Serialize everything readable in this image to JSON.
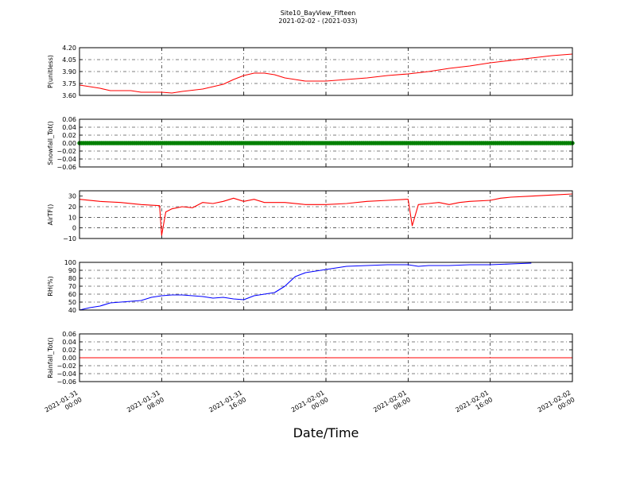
{
  "figure": {
    "title_line1": "Site10_BayView_Fifteen",
    "title_line2": "2021-02-02 - (2021-033)",
    "xlabel": "Date/Time",
    "x_ticks": [
      {
        "t": 0,
        "line1": "2021-01-31",
        "line2": "00:00"
      },
      {
        "t": 8,
        "line1": "2021-01-31",
        "line2": "08:00"
      },
      {
        "t": 16,
        "line1": "2021-01-31",
        "line2": "16:00"
      },
      {
        "t": 24,
        "line1": "2021-02-01",
        "line2": "00:00"
      },
      {
        "t": 32,
        "line1": "2021-02-01",
        "line2": "08:00"
      },
      {
        "t": 40,
        "line1": "2021-02-01",
        "line2": "16:00"
      },
      {
        "t": 48,
        "line1": "2021-02-02",
        "line2": "00:00"
      }
    ],
    "x_range": [
      "2021-01-31 00:00",
      "2021-02-02 00:00"
    ]
  },
  "chart_data": [
    {
      "type": "line",
      "ylabel": "P(unitless)",
      "ylim": [
        3.6,
        4.2
      ],
      "yticks": [
        "3.60",
        "3.75",
        "3.90",
        "4.05",
        "4.20"
      ],
      "ytick_values": [
        3.6,
        3.75,
        3.9,
        4.05,
        4.2
      ],
      "grid": true,
      "series": [
        {
          "color": "#ff0000",
          "x": [
            "2021-01-31 00:00",
            "2021-01-31 01:00",
            "2021-01-31 02:00",
            "2021-01-31 03:00",
            "2021-01-31 05:00",
            "2021-01-31 06:00",
            "2021-01-31 08:00",
            "2021-01-31 09:00",
            "2021-01-31 10:00",
            "2021-01-31 12:00",
            "2021-01-31 13:00",
            "2021-01-31 14:00",
            "2021-01-31 15:00",
            "2021-01-31 16:00",
            "2021-01-31 17:00",
            "2021-01-31 18:00",
            "2021-01-31 19:00",
            "2021-01-31 20:00",
            "2021-01-31 21:00",
            "2021-01-31 22:00",
            "2021-02-01 00:00",
            "2021-02-01 02:00",
            "2021-02-01 04:00",
            "2021-02-01 06:00",
            "2021-02-01 08:00",
            "2021-02-01 10:00",
            "2021-02-01 12:00",
            "2021-02-01 14:00",
            "2021-02-01 16:00",
            "2021-02-01 18:00",
            "2021-02-01 20:00",
            "2021-02-01 22:00",
            "2021-02-02 00:00"
          ],
          "values": [
            3.73,
            3.71,
            3.69,
            3.66,
            3.66,
            3.64,
            3.64,
            3.63,
            3.65,
            3.68,
            3.71,
            3.74,
            3.8,
            3.85,
            3.88,
            3.88,
            3.86,
            3.82,
            3.8,
            3.78,
            3.78,
            3.8,
            3.82,
            3.85,
            3.87,
            3.9,
            3.94,
            3.97,
            4.01,
            4.04,
            4.07,
            4.1,
            4.12
          ]
        }
      ]
    },
    {
      "type": "scatter",
      "ylabel": "Snowfall_Tot()",
      "ylim": [
        -0.06,
        0.06
      ],
      "yticks": [
        "−0.06",
        "−0.04",
        "−0.02",
        "0.00",
        "0.02",
        "0.04",
        "0.06"
      ],
      "ytick_values": [
        -0.06,
        -0.04,
        -0.02,
        0,
        0.02,
        0.04,
        0.06
      ],
      "grid": true,
      "series": [
        {
          "color": "#008000",
          "x_start": "2021-01-31 00:00",
          "x_end": "2021-02-02 00:00",
          "constant_value": 0.0
        }
      ]
    },
    {
      "type": "line",
      "ylabel": "AirTF()",
      "ylim": [
        -10,
        35
      ],
      "yticks": [
        "−10",
        "0",
        "10",
        "20",
        "30"
      ],
      "ytick_values": [
        -10,
        0,
        10,
        20,
        30
      ],
      "grid": true,
      "series": [
        {
          "color": "#ff0000",
          "x": [
            "2021-01-31 00:00",
            "2021-01-31 02:00",
            "2021-01-31 04:00",
            "2021-01-31 06:00",
            "2021-01-31 07:48",
            "2021-01-31 08:00",
            "2021-01-31 08:24",
            "2021-01-31 09:00",
            "2021-01-31 10:00",
            "2021-01-31 11:00",
            "2021-01-31 12:00",
            "2021-01-31 13:00",
            "2021-01-31 14:00",
            "2021-01-31 15:00",
            "2021-01-31 16:00",
            "2021-01-31 17:00",
            "2021-01-31 18:00",
            "2021-01-31 20:00",
            "2021-01-31 22:00",
            "2021-02-01 00:00",
            "2021-02-01 02:00",
            "2021-02-01 04:00",
            "2021-02-01 06:00",
            "2021-02-01 07:48",
            "2021-02-01 08:00",
            "2021-02-01 08:24",
            "2021-02-01 09:00",
            "2021-02-01 10:00",
            "2021-02-01 11:00",
            "2021-02-01 12:00",
            "2021-02-01 13:00",
            "2021-02-01 14:00",
            "2021-02-01 16:00",
            "2021-02-01 17:00",
            "2021-02-01 18:00",
            "2021-02-01 20:00",
            "2021-02-01 22:00",
            "2021-02-02 00:00"
          ],
          "values": [
            27,
            25,
            24,
            22,
            21,
            -7,
            15,
            18,
            20,
            19,
            24,
            23,
            25,
            28,
            25,
            27,
            24,
            24,
            22,
            22,
            23,
            25,
            26,
            27,
            27,
            2,
            22,
            23,
            24,
            22,
            24,
            25,
            26,
            28,
            29,
            30,
            31,
            32
          ]
        }
      ]
    },
    {
      "type": "line",
      "ylabel": "RH(%)",
      "ylim": [
        40,
        100
      ],
      "yticks": [
        "40",
        "50",
        "60",
        "70",
        "80",
        "90",
        "100"
      ],
      "ytick_values": [
        40,
        50,
        60,
        70,
        80,
        90,
        100
      ],
      "grid": true,
      "series": [
        {
          "color": "#0000ff",
          "x": [
            "2021-01-31 00:00",
            "2021-01-31 01:00",
            "2021-01-31 02:00",
            "2021-01-31 03:00",
            "2021-01-31 04:00",
            "2021-01-31 05:00",
            "2021-01-31 06:00",
            "2021-01-31 07:00",
            "2021-01-31 08:00",
            "2021-01-31 09:00",
            "2021-01-31 10:00",
            "2021-01-31 11:00",
            "2021-01-31 12:00",
            "2021-01-31 13:00",
            "2021-01-31 14:00",
            "2021-01-31 15:00",
            "2021-01-31 16:00",
            "2021-01-31 17:00",
            "2021-01-31 18:00",
            "2021-01-31 19:00",
            "2021-01-31 20:00",
            "2021-01-31 21:00",
            "2021-01-31 22:00",
            "2021-01-31 23:00",
            "2021-02-01 00:00",
            "2021-02-01 01:00",
            "2021-02-01 02:00",
            "2021-02-01 04:00",
            "2021-02-01 06:00",
            "2021-02-01 08:00",
            "2021-02-01 09:00",
            "2021-02-01 10:00",
            "2021-02-01 12:00",
            "2021-02-01 14:00",
            "2021-02-01 16:00",
            "2021-02-01 18:00",
            "2021-02-01 20:00"
          ],
          "values": [
            40,
            43,
            45,
            49,
            50,
            51,
            52,
            56,
            58,
            59,
            59,
            58,
            57,
            55,
            56,
            54,
            53,
            58,
            60,
            62,
            70,
            82,
            87,
            89,
            91,
            93,
            95,
            96,
            97,
            97,
            95,
            96,
            96,
            97,
            97,
            98,
            99
          ]
        }
      ]
    },
    {
      "type": "line",
      "ylabel": "Rainfall_Tot()",
      "ylim": [
        -0.06,
        0.06
      ],
      "yticks": [
        "−0.06",
        "−0.04",
        "−0.02",
        "0.00",
        "0.02",
        "0.04",
        "0.06"
      ],
      "ytick_values": [
        -0.06,
        -0.04,
        -0.02,
        0,
        0.02,
        0.04,
        0.06
      ],
      "grid": true,
      "series": [
        {
          "color": "#ff0000",
          "x": [
            "2021-01-31 00:00",
            "2021-02-02 00:00"
          ],
          "values": [
            0.0,
            0.0
          ]
        }
      ]
    }
  ]
}
